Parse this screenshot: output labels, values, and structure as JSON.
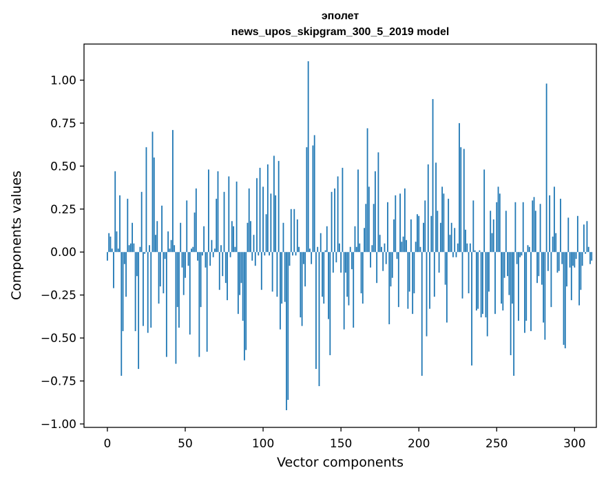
{
  "chart_data": {
    "type": "bar",
    "title_line1": "эполет",
    "title_line2": "news_upos_skipgram_300_5_2019 model",
    "xlabel": "Vector components",
    "ylabel": "Components values",
    "xlim": [
      -15,
      314
    ],
    "ylim": [
      -1.02,
      1.21
    ],
    "xticks": [
      0,
      50,
      100,
      150,
      200,
      250,
      300
    ],
    "xtick_labels": [
      "0",
      "50",
      "100",
      "150",
      "200",
      "250",
      "300"
    ],
    "yticks": [
      -1.0,
      -0.75,
      -0.5,
      -0.25,
      0.0,
      0.25,
      0.5,
      0.75,
      1.0
    ],
    "ytick_labels": [
      "−1.00",
      "−0.75",
      "−0.50",
      "−0.25",
      "0.00",
      "0.25",
      "0.50",
      "0.75",
      "1.00"
    ],
    "bar_color": "#1f77b4",
    "values": [
      -0.05,
      0.11,
      0.09,
      0.02,
      -0.21,
      0.47,
      0.12,
      0.02,
      0.33,
      -0.72,
      -0.46,
      -0.07,
      -0.26,
      0.31,
      0.04,
      0.05,
      0.17,
      0.05,
      -0.46,
      -0.14,
      -0.68,
      0.03,
      0.35,
      -0.43,
      -0.01,
      0.61,
      -0.47,
      0.04,
      -0.44,
      0.7,
      0.55,
      0.1,
      0.18,
      -0.3,
      -0.2,
      0.27,
      -0.24,
      -0.04,
      -0.61,
      0.12,
      0.02,
      0.07,
      0.71,
      0.04,
      -0.65,
      -0.32,
      -0.44,
      0.17,
      -0.09,
      -0.25,
      -0.15,
      0.3,
      -0.08,
      -0.48,
      0.02,
      0.03,
      0.23,
      0.37,
      -0.05,
      -0.61,
      -0.32,
      -0.02,
      0.15,
      -0.09,
      -0.58,
      0.48,
      -0.08,
      0.07,
      -0.03,
      0.02,
      0.31,
      0.47,
      -0.22,
      0.04,
      -0.14,
      0.35,
      -0.18,
      -0.28,
      0.44,
      -0.03,
      0.18,
      0.15,
      0.03,
      0.41,
      -0.36,
      -0.25,
      -0.18,
      -0.4,
      -0.63,
      -0.57,
      0.17,
      0.37,
      0.18,
      -0.05,
      0.1,
      -0.08,
      0.43,
      -0.02,
      0.49,
      -0.22,
      0.38,
      -0.02,
      0.22,
      0.51,
      -0.02,
      0.34,
      -0.23,
      0.56,
      0.33,
      -0.26,
      0.53,
      -0.45,
      -0.3,
      0.17,
      -0.29,
      -0.92,
      -0.86,
      -0.08,
      0.25,
      -0.02,
      0.25,
      -0.02,
      0.19,
      0.03,
      -0.38,
      -0.43,
      -0.07,
      -0.2,
      0.61,
      1.11,
      0.02,
      -0.07,
      0.62,
      0.68,
      -0.68,
      0.03,
      -0.78,
      0.11,
      -0.26,
      -0.3,
      0.01,
      0.15,
      -0.39,
      -0.6,
      0.35,
      -0.12,
      0.37,
      -0.06,
      0.44,
      0.05,
      -0.12,
      0.49,
      -0.45,
      -0.12,
      -0.26,
      -0.31,
      0.03,
      -0.1,
      -0.44,
      0.15,
      0.03,
      0.48,
      0.05,
      -0.24,
      -0.3,
      0.14,
      0.28,
      0.72,
      0.38,
      -0.09,
      0.04,
      0.28,
      0.47,
      -0.18,
      0.58,
      0.1,
      0.03,
      -0.11,
      0.05,
      -0.07,
      0.29,
      -0.42,
      -0.2,
      -0.15,
      0.19,
      0.33,
      -0.04,
      -0.32,
      0.34,
      0.06,
      0.09,
      0.37,
      0.07,
      -0.33,
      -0.23,
      0.19,
      -0.36,
      -0.24,
      0.06,
      0.22,
      0.21,
      0.03,
      -0.72,
      0.17,
      0.3,
      -0.49,
      0.51,
      -0.33,
      0.21,
      0.89,
      -0.26,
      0.52,
      0.24,
      -0.12,
      0.17,
      0.38,
      0.34,
      -0.19,
      -0.41,
      0.31,
      0.1,
      0.17,
      -0.03,
      0.14,
      -0.03,
      0.05,
      0.75,
      0.61,
      -0.27,
      0.6,
      0.13,
      0.05,
      -0.24,
      0.05,
      -0.66,
      0.3,
      0.01,
      -0.34,
      -0.33,
      0.01,
      -0.38,
      -0.36,
      0.48,
      -0.38,
      -0.49,
      -0.23,
      0.24,
      0.11,
      0.19,
      -0.36,
      0.29,
      0.38,
      0.34,
      -0.3,
      -0.34,
      -0.15,
      0.24,
      -0.14,
      -0.25,
      -0.6,
      -0.3,
      -0.72,
      0.29,
      -0.07,
      -0.4,
      -0.03,
      -0.02,
      0.29,
      -0.47,
      -0.4,
      0.04,
      0.03,
      -0.46,
      0.3,
      0.32,
      0.24,
      -0.18,
      -0.14,
      0.28,
      -0.19,
      -0.41,
      -0.51,
      0.98,
      -0.11,
      0.33,
      -0.32,
      0.09,
      0.38,
      0.11,
      -0.12,
      -0.11,
      0.31,
      -0.07,
      -0.54,
      -0.56,
      -0.2,
      0.2,
      -0.09,
      -0.28,
      -0.08,
      -0.09,
      -0.04,
      0.21,
      -0.31,
      -0.22,
      -0.08,
      0.16,
      -0.01,
      0.18,
      0.03,
      -0.07,
      -0.05
    ]
  }
}
